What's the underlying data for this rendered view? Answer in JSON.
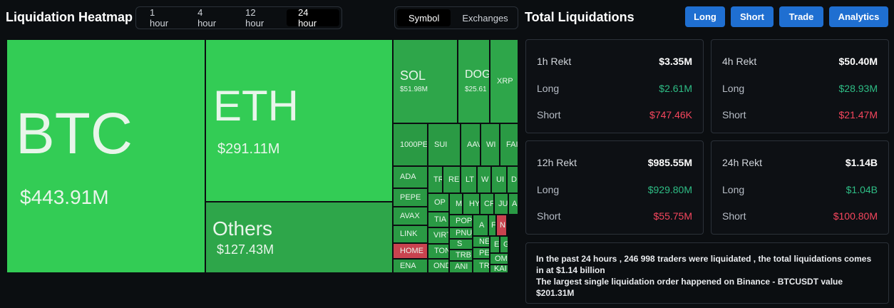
{
  "header": {
    "title": "Liquidation Heatmap",
    "tabs": [
      "1 hour",
      "4 hour",
      "12 hour",
      "24 hour"
    ],
    "toggle": [
      "Symbol",
      "Exchanges"
    ]
  },
  "treemap": {
    "tiles": [
      {
        "label": "BTC",
        "value": "$443.91M"
      },
      {
        "label": "ETH",
        "value": "$291.11M"
      },
      {
        "label": "Others",
        "value": "$127.43M"
      },
      {
        "label": "SOL",
        "value": "$51.98M"
      },
      {
        "label": "DOG",
        "value": "$25.61"
      },
      {
        "label": "XRP"
      },
      {
        "label": "1000PE"
      },
      {
        "label": "SUI"
      },
      {
        "label": "AAV"
      },
      {
        "label": "WI"
      },
      {
        "label": "FAI"
      },
      {
        "label": "ADA"
      },
      {
        "label": "PEPE"
      },
      {
        "label": "AVAX"
      },
      {
        "label": "LINK"
      },
      {
        "label": "HOME"
      },
      {
        "label": "ENA"
      },
      {
        "label": "TR"
      },
      {
        "label": "RE"
      },
      {
        "label": "LT"
      },
      {
        "label": "W"
      },
      {
        "label": "UI"
      },
      {
        "label": "D"
      },
      {
        "label": "OP"
      },
      {
        "label": "M"
      },
      {
        "label": "HY"
      },
      {
        "label": "CF"
      },
      {
        "label": "JU"
      },
      {
        "label": "A"
      },
      {
        "label": "TIA"
      },
      {
        "label": "POP"
      },
      {
        "label": "A"
      },
      {
        "label": "F"
      },
      {
        "label": "N"
      },
      {
        "label": "VIRT"
      },
      {
        "label": "PNU"
      },
      {
        "label": "S"
      },
      {
        "label": "NE"
      },
      {
        "label": "E"
      },
      {
        "label": "G"
      },
      {
        "label": "TON"
      },
      {
        "label": "TRB"
      },
      {
        "label": "PE"
      },
      {
        "label": "OM"
      },
      {
        "label": "OND"
      },
      {
        "label": "ANI"
      },
      {
        "label": "TR"
      },
      {
        "label": "KAI"
      }
    ]
  },
  "panel": {
    "title": "Total Liquidations",
    "buttons": [
      "Long",
      "Short",
      "Trade",
      "Analytics"
    ]
  },
  "cards": [
    {
      "title": "1h Rekt",
      "total": "$3.35M",
      "rows": [
        {
          "label": "Long",
          "value": "$2.61M"
        },
        {
          "label": "Short",
          "value": "$747.46K"
        }
      ]
    },
    {
      "title": "4h Rekt",
      "total": "$50.40M",
      "rows": [
        {
          "label": "Long",
          "value": "$28.93M"
        },
        {
          "label": "Short",
          "value": "$21.47M"
        }
      ]
    },
    {
      "title": "12h Rekt",
      "total": "$985.55M",
      "rows": [
        {
          "label": "Long",
          "value": "$929.80M"
        },
        {
          "label": "Short",
          "value": "$55.75M"
        }
      ]
    },
    {
      "title": "24h Rekt",
      "total": "$1.14B",
      "rows": [
        {
          "label": "Long",
          "value": "$1.04B"
        },
        {
          "label": "Short",
          "value": "$100.80M"
        }
      ]
    }
  ],
  "summary": [
    "In the past 24 hours , 246 998 traders were liquidated , the total liquidations comes in at $1.14 billion",
    "The largest single liquidation order happened on Binance - BTCUSDT value $201.31M"
  ]
}
